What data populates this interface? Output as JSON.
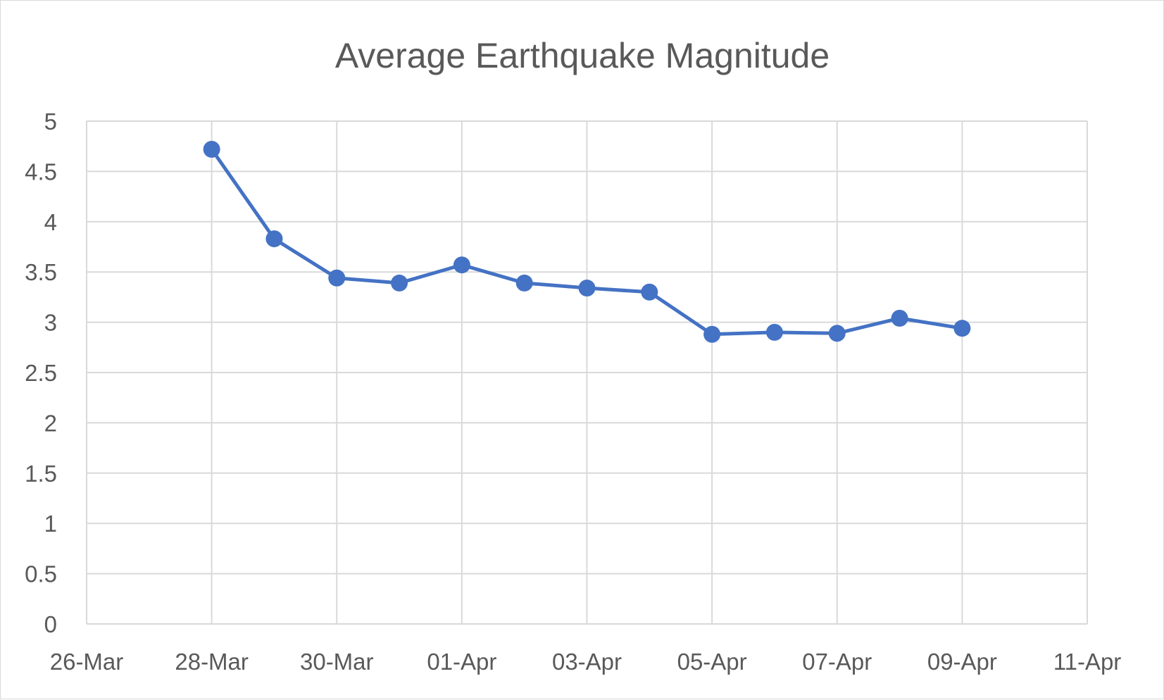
{
  "chart_data": {
    "type": "line",
    "title": "Average Earthquake Magnitude",
    "xlabel": "",
    "ylabel": "",
    "x_axis_type": "date",
    "xlim": [
      "2025-03-26",
      "2025-04-11"
    ],
    "ylim": [
      0,
      5
    ],
    "x_ticks": [
      {
        "date": "2025-03-26",
        "label": "26-Mar"
      },
      {
        "date": "2025-03-28",
        "label": "28-Mar"
      },
      {
        "date": "2025-03-30",
        "label": "30-Mar"
      },
      {
        "date": "2025-04-01",
        "label": "01-Apr"
      },
      {
        "date": "2025-04-03",
        "label": "03-Apr"
      },
      {
        "date": "2025-04-05",
        "label": "05-Apr"
      },
      {
        "date": "2025-04-07",
        "label": "07-Apr"
      },
      {
        "date": "2025-04-09",
        "label": "09-Apr"
      },
      {
        "date": "2025-04-11",
        "label": "11-Apr"
      }
    ],
    "y_ticks": [
      {
        "value": 0,
        "label": "0"
      },
      {
        "value": 0.5,
        "label": "0.5"
      },
      {
        "value": 1,
        "label": "1"
      },
      {
        "value": 1.5,
        "label": "1.5"
      },
      {
        "value": 2,
        "label": "2"
      },
      {
        "value": 2.5,
        "label": "2.5"
      },
      {
        "value": 3,
        "label": "3"
      },
      {
        "value": 3.5,
        "label": "3.5"
      },
      {
        "value": 4,
        "label": "4"
      },
      {
        "value": 4.5,
        "label": "4.5"
      },
      {
        "value": 5,
        "label": "5"
      }
    ],
    "grid": true,
    "legend": "none",
    "series": [
      {
        "color": "#4472c4",
        "marker": "circle",
        "x": [
          "2025-03-28",
          "2025-03-29",
          "2025-03-30",
          "2025-03-31",
          "2025-04-01",
          "2025-04-02",
          "2025-04-03",
          "2025-04-04",
          "2025-04-05",
          "2025-04-06",
          "2025-04-07",
          "2025-04-08",
          "2025-04-09"
        ],
        "y": [
          4.72,
          3.83,
          3.44,
          3.39,
          3.57,
          3.39,
          3.34,
          3.3,
          2.88,
          2.9,
          2.89,
          3.04,
          2.94
        ]
      }
    ]
  },
  "colors": {
    "gridline": "#d9d9d9",
    "text": "#595959",
    "series": "#4472c4"
  }
}
